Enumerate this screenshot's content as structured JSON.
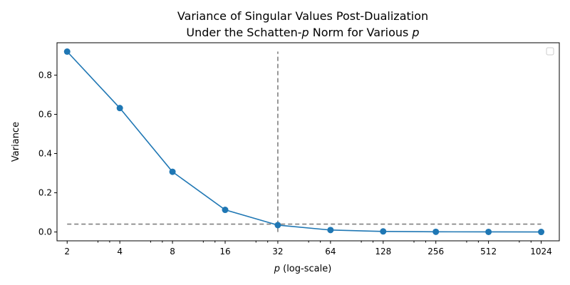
{
  "chart_data": {
    "type": "line",
    "title_line1": "Variance of Singular Values Post-Dualization",
    "title_line2_prefix": "Under the Schatten-",
    "title_line2_p": "p",
    "title_line2_mid": " Norm for Various ",
    "title_line2_p2": "p",
    "xlabel_var": "p",
    "xlabel_rest": " (log-scale)",
    "ylabel": "Variance",
    "xscale": "log2",
    "xlim": [
      1.75,
      1300
    ],
    "ylim": [
      -0.045,
      0.965
    ],
    "x": [
      2,
      4,
      8,
      16,
      32,
      64,
      128,
      256,
      512,
      1024
    ],
    "x_tick_labels": [
      "2",
      "4",
      "8",
      "16",
      "32",
      "64",
      "128",
      "256",
      "512",
      "1024"
    ],
    "y_ticks": [
      0.0,
      0.2,
      0.4,
      0.6,
      0.8
    ],
    "y_tick_labels": [
      "0.0",
      "0.2",
      "0.4",
      "0.6",
      "0.8"
    ],
    "series": [
      {
        "name": "Variance",
        "color": "#1f77b4",
        "values": [
          0.92,
          0.632,
          0.307,
          0.113,
          0.035,
          0.01,
          0.003,
          0.001,
          0.0005,
          0.0003
        ]
      }
    ],
    "reference_lines": {
      "horizontal": {
        "y": 0.04,
        "x_from": 2,
        "x_to": 1024,
        "color": "#808080",
        "style": "dashed"
      },
      "vertical": {
        "x": 32,
        "y_from": 0.0,
        "y_to": 0.92,
        "color": "#808080",
        "style": "dashed"
      }
    },
    "legend": {
      "position": "top-right",
      "entries": []
    }
  }
}
